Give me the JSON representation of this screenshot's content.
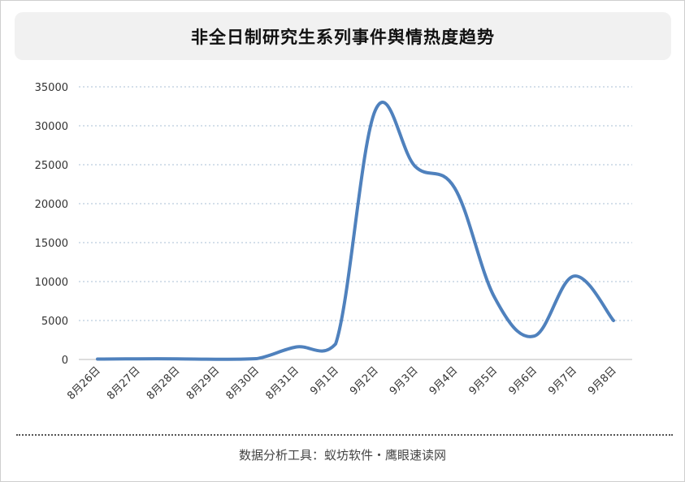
{
  "chart_data": {
    "type": "line",
    "title": "非全日制研究生系列事件舆情热度趋势",
    "categories": [
      "8月26日",
      "8月27日",
      "8月28日",
      "8月29日",
      "8月30日",
      "8月31日",
      "9月1日",
      "9月2日",
      "9月3日",
      "9月4日",
      "9月5日",
      "9月6日",
      "9月7日",
      "9月8日"
    ],
    "values": [
      50,
      80,
      80,
      30,
      100,
      1600,
      2000,
      32000,
      24800,
      22000,
      8000,
      3000,
      10700,
      5000
    ],
    "yticks": [
      "0",
      "5000",
      "10000",
      "15000",
      "20000",
      "25000",
      "30000",
      "35000"
    ],
    "ylim": [
      0,
      35000
    ],
    "grid": true,
    "line_color": "#4f81bd"
  },
  "footer": "数据分析工具：蚁坊软件・鹰眼速读网"
}
